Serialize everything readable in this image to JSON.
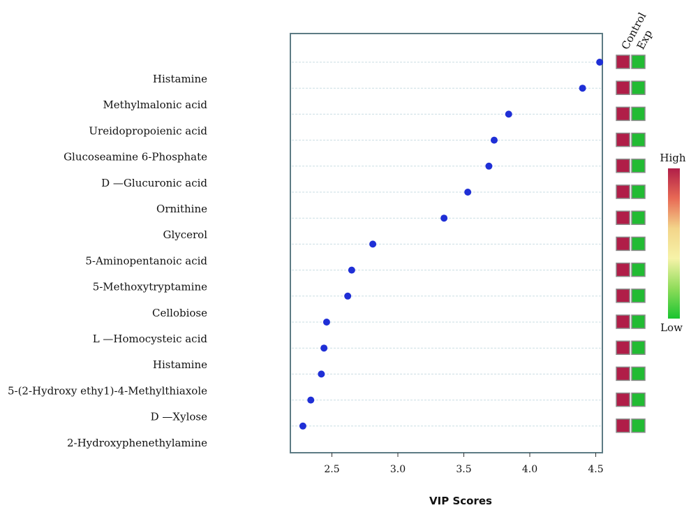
{
  "chart_data": {
    "type": "scatter",
    "xlabel": "VIP Scores",
    "xlim": [
      2.2,
      4.6
    ],
    "xticks": [
      2.5,
      3.0,
      3.5,
      4.0,
      4.5
    ],
    "xtick_labels": [
      "2.5",
      "3.0",
      "3.5",
      "4.0",
      "4.5"
    ],
    "labels": [
      "Histamine",
      "Methylmalonic acid",
      "Ureidopropoienic acid",
      "Glucoseamine 6-Phosphate",
      "D —Glucuronic acid",
      "Ornithine",
      "Glycerol",
      "5-Aminopentanoic acid",
      "5-Methoxytryptamine",
      "Cellobiose",
      "L —Homocysteic acid",
      "Histamine",
      "5-(2-Hydroxy ethy1)-4-Methylthiaxole",
      "D —Xylose",
      "2-Hydroxyphenethylamine"
    ],
    "values": [
      4.53,
      4.4,
      3.84,
      3.73,
      3.69,
      3.53,
      3.35,
      2.81,
      2.65,
      2.62,
      2.46,
      2.44,
      2.42,
      2.34,
      2.28
    ],
    "point_color": "#1f2fd6",
    "group_columns": [
      "Control",
      "Exp"
    ],
    "group_colors": [
      "#b01e48",
      "#22bb33"
    ],
    "colorbar": {
      "high_label": "High",
      "low_label": "Low",
      "colors": [
        "#b01e48",
        "#e86a55",
        "#f3d58a",
        "#f6f3a8",
        "#8fdc5a",
        "#19c430"
      ]
    }
  }
}
